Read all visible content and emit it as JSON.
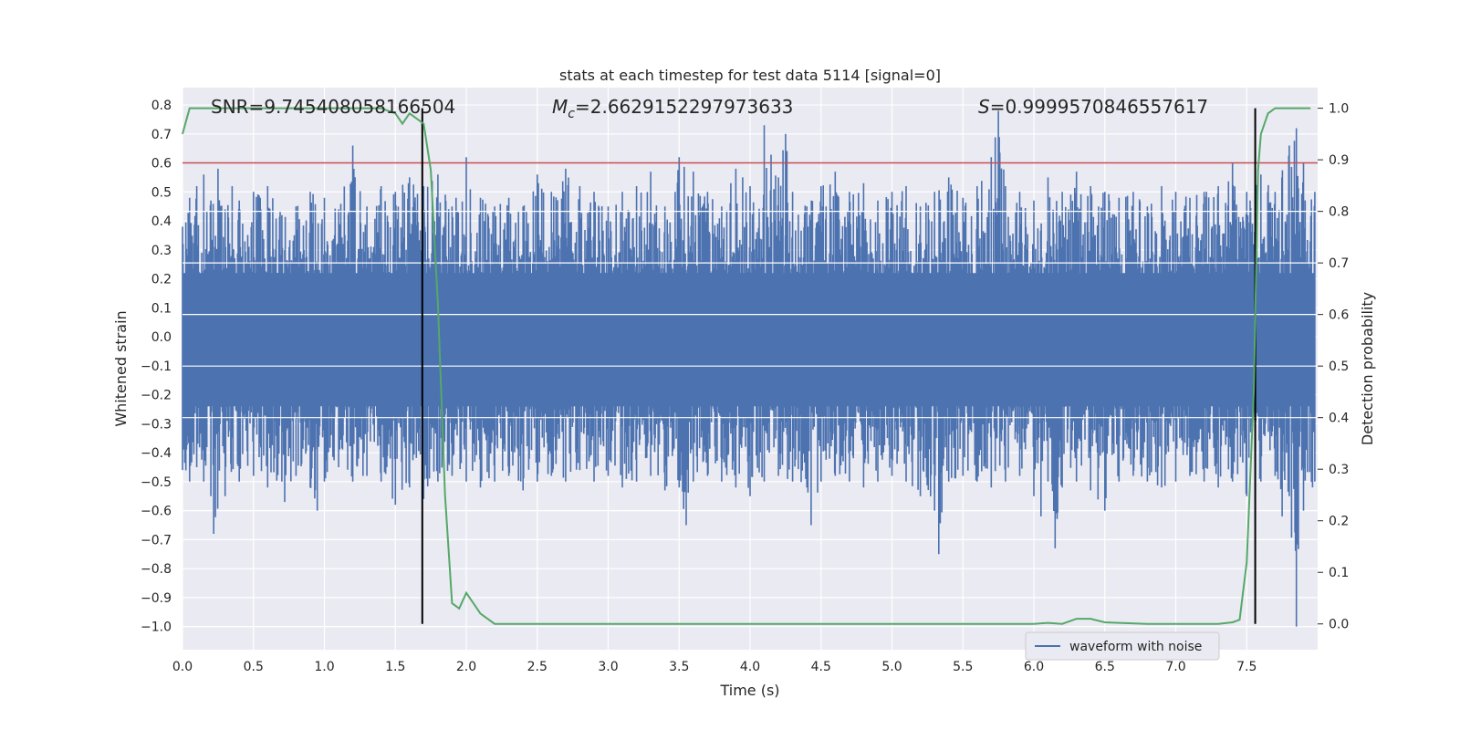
{
  "chart_data": {
    "type": "line",
    "title": "stats at each timestep for test data 5114 [signal=0]",
    "xlabel": "Time (s)",
    "ylabel": "Whitened strain",
    "y2label": "Detection probability",
    "xlim": [
      0.0,
      8.0
    ],
    "ylim": [
      -1.08,
      0.86
    ],
    "y2lim": [
      -0.05,
      1.04
    ],
    "x_ticks": [
      0.0,
      0.5,
      1.0,
      1.5,
      2.0,
      2.5,
      3.0,
      3.5,
      4.0,
      4.5,
      5.0,
      5.5,
      6.0,
      6.5,
      7.0,
      7.5
    ],
    "x_tick_labels": [
      "0.0",
      "0.5",
      "1.0",
      "1.5",
      "2.0",
      "2.5",
      "3.0",
      "3.5",
      "4.0",
      "4.5",
      "5.0",
      "5.5",
      "6.0",
      "6.5",
      "7.0",
      "7.5"
    ],
    "y_ticks": [
      0.8,
      0.7,
      0.6,
      0.5,
      0.4,
      0.3,
      0.2,
      0.1,
      0.0,
      -0.1,
      -0.2,
      -0.3,
      -0.4,
      -0.5,
      -0.6,
      -0.7,
      -0.8,
      -0.9,
      -1.0
    ],
    "y_tick_labels": [
      "0.8",
      "0.7",
      "0.6",
      "0.5",
      "0.4",
      "0.3",
      "0.2",
      "0.1",
      "0.0",
      "−0.1",
      "−0.2",
      "−0.3",
      "−0.4",
      "−0.5",
      "−0.6",
      "−0.7",
      "−0.8",
      "−0.9",
      "−1.0"
    ],
    "y2_ticks": [
      1.0,
      0.9,
      0.8,
      0.7,
      0.6,
      0.5,
      0.4,
      0.3,
      0.2,
      0.1,
      0.0
    ],
    "y2_tick_labels": [
      "1.0",
      "0.9",
      "0.8",
      "0.7",
      "0.6",
      "0.5",
      "0.4",
      "0.3",
      "0.2",
      "0.1",
      "0.0"
    ],
    "grid": true,
    "series": [
      {
        "name": "waveform with noise",
        "color": "#4c72b0",
        "axis": "left",
        "description_peaks": {
          "upper_envelope": [
            [
              0.0,
              0.38
            ],
            [
              0.05,
              0.48
            ],
            [
              0.1,
              0.52
            ],
            [
              0.15,
              0.56
            ],
            [
              0.2,
              0.47
            ],
            [
              0.25,
              0.58
            ],
            [
              0.3,
              0.44
            ],
            [
              0.35,
              0.52
            ],
            [
              0.4,
              0.47
            ],
            [
              0.5,
              0.5
            ],
            [
              0.6,
              0.52
            ],
            [
              0.7,
              0.42
            ],
            [
              0.8,
              0.45
            ],
            [
              0.9,
              0.5
            ],
            [
              1.0,
              0.48
            ],
            [
              1.1,
              0.44
            ],
            [
              1.2,
              0.66
            ],
            [
              1.3,
              0.45
            ],
            [
              1.4,
              0.52
            ],
            [
              1.5,
              0.5
            ],
            [
              1.6,
              0.55
            ],
            [
              1.7,
              0.52
            ],
            [
              1.8,
              0.56
            ],
            [
              1.9,
              0.45
            ],
            [
              2.0,
              0.62
            ],
            [
              2.1,
              0.48
            ],
            [
              2.2,
              0.45
            ],
            [
              2.3,
              0.48
            ],
            [
              2.4,
              0.45
            ],
            [
              2.5,
              0.56
            ],
            [
              2.6,
              0.5
            ],
            [
              2.7,
              0.58
            ],
            [
              2.8,
              0.52
            ],
            [
              2.9,
              0.5
            ],
            [
              3.0,
              0.45
            ],
            [
              3.1,
              0.5
            ],
            [
              3.2,
              0.52
            ],
            [
              3.3,
              0.57
            ],
            [
              3.4,
              0.45
            ],
            [
              3.5,
              0.62
            ],
            [
              3.6,
              0.57
            ],
            [
              3.7,
              0.5
            ],
            [
              3.8,
              0.45
            ],
            [
              3.9,
              0.58
            ],
            [
              4.0,
              0.52
            ],
            [
              4.1,
              0.73
            ],
            [
              4.2,
              0.55
            ],
            [
              4.25,
              0.7
            ],
            [
              4.3,
              0.5
            ],
            [
              4.4,
              0.45
            ],
            [
              4.5,
              0.52
            ],
            [
              4.6,
              0.57
            ],
            [
              4.7,
              0.5
            ],
            [
              4.8,
              0.53
            ],
            [
              4.9,
              0.47
            ],
            [
              5.0,
              0.5
            ],
            [
              5.1,
              0.52
            ],
            [
              5.2,
              0.45
            ],
            [
              5.3,
              0.5
            ],
            [
              5.4,
              0.55
            ],
            [
              5.5,
              0.48
            ],
            [
              5.6,
              0.52
            ],
            [
              5.7,
              0.62
            ],
            [
              5.75,
              0.78
            ],
            [
              5.8,
              0.52
            ],
            [
              5.9,
              0.5
            ],
            [
              6.0,
              0.47
            ],
            [
              6.1,
              0.55
            ],
            [
              6.2,
              0.5
            ],
            [
              6.3,
              0.57
            ],
            [
              6.4,
              0.52
            ],
            [
              6.5,
              0.5
            ],
            [
              6.6,
              0.48
            ],
            [
              6.7,
              0.5
            ],
            [
              6.8,
              0.45
            ],
            [
              6.9,
              0.52
            ],
            [
              7.0,
              0.5
            ],
            [
              7.1,
              0.48
            ],
            [
              7.2,
              0.5
            ],
            [
              7.3,
              0.52
            ],
            [
              7.4,
              0.6
            ],
            [
              7.5,
              0.5
            ],
            [
              7.6,
              0.56
            ],
            [
              7.7,
              0.5
            ],
            [
              7.8,
              0.66
            ],
            [
              7.85,
              0.72
            ],
            [
              7.9,
              0.6
            ],
            [
              7.98,
              0.5
            ]
          ],
          "lower_envelope": [
            [
              0.0,
              -0.46
            ],
            [
              0.05,
              -0.5
            ],
            [
              0.1,
              -0.45
            ],
            [
              0.15,
              -0.5
            ],
            [
              0.2,
              -0.55
            ],
            [
              0.22,
              -0.68
            ],
            [
              0.3,
              -0.55
            ],
            [
              0.4,
              -0.5
            ],
            [
              0.5,
              -0.48
            ],
            [
              0.6,
              -0.52
            ],
            [
              0.7,
              -0.5
            ],
            [
              0.72,
              -0.57
            ],
            [
              0.8,
              -0.48
            ],
            [
              0.9,
              -0.52
            ],
            [
              0.95,
              -0.6
            ],
            [
              1.0,
              -0.5
            ],
            [
              1.1,
              -0.45
            ],
            [
              1.2,
              -0.5
            ],
            [
              1.3,
              -0.48
            ],
            [
              1.4,
              -0.5
            ],
            [
              1.5,
              -0.58
            ],
            [
              1.6,
              -0.52
            ],
            [
              1.7,
              -0.56
            ],
            [
              1.8,
              -0.5
            ],
            [
              1.9,
              -0.48
            ],
            [
              2.0,
              -0.5
            ],
            [
              2.1,
              -0.52
            ],
            [
              2.2,
              -0.5
            ],
            [
              2.3,
              -0.48
            ],
            [
              2.4,
              -0.53
            ],
            [
              2.5,
              -0.5
            ],
            [
              2.6,
              -0.48
            ],
            [
              2.7,
              -0.5
            ],
            [
              2.8,
              -0.46
            ],
            [
              2.9,
              -0.5
            ],
            [
              3.0,
              -0.48
            ],
            [
              3.1,
              -0.52
            ],
            [
              3.2,
              -0.5
            ],
            [
              3.3,
              -0.48
            ],
            [
              3.4,
              -0.53
            ],
            [
              3.5,
              -0.52
            ],
            [
              3.55,
              -0.65
            ],
            [
              3.6,
              -0.5
            ],
            [
              3.7,
              -0.48
            ],
            [
              3.8,
              -0.5
            ],
            [
              3.9,
              -0.52
            ],
            [
              4.0,
              -0.55
            ],
            [
              4.1,
              -0.5
            ],
            [
              4.2,
              -0.48
            ],
            [
              4.3,
              -0.5
            ],
            [
              4.4,
              -0.52
            ],
            [
              4.43,
              -0.65
            ],
            [
              4.5,
              -0.5
            ],
            [
              4.6,
              -0.48
            ],
            [
              4.7,
              -0.5
            ],
            [
              4.8,
              -0.52
            ],
            [
              4.9,
              -0.5
            ],
            [
              5.0,
              -0.48
            ],
            [
              5.1,
              -0.5
            ],
            [
              5.2,
              -0.55
            ],
            [
              5.3,
              -0.6
            ],
            [
              5.33,
              -0.75
            ],
            [
              5.4,
              -0.5
            ],
            [
              5.5,
              -0.48
            ],
            [
              5.6,
              -0.5
            ],
            [
              5.7,
              -0.52
            ],
            [
              5.8,
              -0.5
            ],
            [
              5.9,
              -0.48
            ],
            [
              6.0,
              -0.55
            ],
            [
              6.05,
              -0.62
            ],
            [
              6.1,
              -0.5
            ],
            [
              6.15,
              -0.73
            ],
            [
              6.2,
              -0.52
            ],
            [
              6.3,
              -0.5
            ],
            [
              6.4,
              -0.53
            ],
            [
              6.5,
              -0.6
            ],
            [
              6.6,
              -0.5
            ],
            [
              6.7,
              -0.48
            ],
            [
              6.8,
              -0.5
            ],
            [
              6.9,
              -0.52
            ],
            [
              7.0,
              -0.5
            ],
            [
              7.1,
              -0.48
            ],
            [
              7.2,
              -0.5
            ],
            [
              7.3,
              -0.52
            ],
            [
              7.4,
              -0.5
            ],
            [
              7.5,
              -0.55
            ],
            [
              7.6,
              -0.5
            ],
            [
              7.7,
              -0.48
            ],
            [
              7.75,
              -0.62
            ],
            [
              7.8,
              -0.55
            ],
            [
              7.85,
              -1.0
            ],
            [
              7.9,
              -0.6
            ],
            [
              7.98,
              -0.5
            ]
          ]
        }
      },
      {
        "name": "detection probability",
        "color": "#55a868",
        "axis": "right",
        "x": [
          0.0,
          0.05,
          0.1,
          0.2,
          0.3,
          0.4,
          0.5,
          0.6,
          0.7,
          0.8,
          0.9,
          1.0,
          1.1,
          1.2,
          1.3,
          1.4,
          1.5,
          1.55,
          1.6,
          1.65,
          1.7,
          1.75,
          1.8,
          1.85,
          1.9,
          1.95,
          2.0,
          2.05,
          2.1,
          2.2,
          2.3,
          2.4,
          2.5,
          2.6,
          2.7,
          2.8,
          3.0,
          3.2,
          3.4,
          3.6,
          3.8,
          4.0,
          4.2,
          4.4,
          4.6,
          4.8,
          5.0,
          5.2,
          5.4,
          5.6,
          5.8,
          6.0,
          6.1,
          6.2,
          6.3,
          6.4,
          6.5,
          6.6,
          6.8,
          7.0,
          7.2,
          7.3,
          7.4,
          7.45,
          7.5,
          7.55,
          7.58,
          7.6,
          7.65,
          7.7,
          7.75,
          7.8,
          7.85,
          7.9,
          7.95
        ],
        "y": [
          0.95,
          1.0,
          1.0,
          1.0,
          1.0,
          1.0,
          1.0,
          1.0,
          1.0,
          1.0,
          1.0,
          1.0,
          1.0,
          1.0,
          1.0,
          1.0,
          0.99,
          0.97,
          0.99,
          0.98,
          0.97,
          0.88,
          0.62,
          0.25,
          0.04,
          0.03,
          0.06,
          0.04,
          0.02,
          0.0,
          0.0,
          0.0,
          0.0,
          0.0,
          0.0,
          0.0,
          0.0,
          0.0,
          0.0,
          0.0,
          0.0,
          0.0,
          0.0,
          0.0,
          0.0,
          0.0,
          0.0,
          0.0,
          0.0,
          0.0,
          0.0,
          0.0,
          0.002,
          0.0,
          0.01,
          0.01,
          0.003,
          0.002,
          0.0,
          0.0,
          0.0,
          0.0,
          0.003,
          0.008,
          0.12,
          0.45,
          0.88,
          0.95,
          0.99,
          1.0,
          1.0,
          1.0,
          1.0,
          1.0,
          1.0
        ]
      }
    ],
    "threshold_line": {
      "y": 0.6,
      "axis": "left",
      "color": "#c44e52"
    },
    "vertical_markers": [
      {
        "x": 1.69,
        "color": "#000000"
      },
      {
        "x": 7.56,
        "color": "#000000"
      }
    ],
    "right_grid_values": [
      0.8,
      0.7,
      0.6,
      0.5,
      0.4
    ],
    "annotations": [
      {
        "text_prefix": "SNR=",
        "value": "9.745408058166504",
        "x": 0.2
      },
      {
        "text_prefix": "=",
        "symbol": "M",
        "subscript": "c",
        "value": "2.6629152297973633",
        "x": 2.6
      },
      {
        "text_prefix": "=",
        "symbol": "S",
        "value": "0.9999570846557617",
        "x": 5.6
      }
    ],
    "legend": {
      "label": "waveform with noise",
      "placement": "lower-right"
    },
    "colors": {
      "background": "#eaeaf2",
      "grid": "#ffffff",
      "text": "#262626"
    }
  }
}
